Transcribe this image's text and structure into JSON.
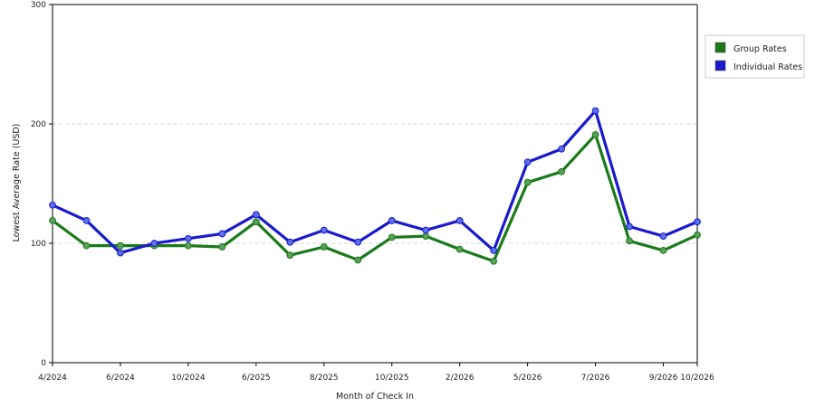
{
  "chart_data": {
    "type": "line",
    "title": "",
    "xlabel": "Month of Check In",
    "ylabel": "Lowest Average Rate (USD)",
    "ylim": [
      0,
      300
    ],
    "yticks": [
      0,
      100,
      200,
      300
    ],
    "grid": "horizontal-dashed",
    "legend_position": "right",
    "x_tick_labels": [
      {
        "index": 0,
        "label": "4/2024"
      },
      {
        "index": 2,
        "label": "6/2024"
      },
      {
        "index": 4,
        "label": "10/2024"
      },
      {
        "index": 6,
        "label": "6/2025"
      },
      {
        "index": 8,
        "label": "8/2025"
      },
      {
        "index": 10,
        "label": "10/2025"
      },
      {
        "index": 12,
        "label": "2/2026"
      },
      {
        "index": 14,
        "label": "5/2026"
      },
      {
        "index": 16,
        "label": "7/2026"
      },
      {
        "index": 18,
        "label": "9/2026"
      },
      {
        "index": 19,
        "label": "10/2026"
      }
    ],
    "series": [
      {
        "name": "Group Rates",
        "color": "#1a7a1a",
        "values": [
          119,
          98,
          98,
          98,
          98,
          97,
          118,
          90,
          97,
          86,
          105,
          106,
          95,
          85,
          151,
          160,
          191,
          102,
          94,
          107
        ]
      },
      {
        "name": "Individual Rates",
        "color": "#1a1acc",
        "values": [
          132,
          119,
          92,
          100,
          104,
          108,
          124,
          101,
          111,
          101,
          119,
          111,
          119,
          94,
          168,
          179,
          211,
          114,
          106,
          118
        ]
      }
    ]
  }
}
